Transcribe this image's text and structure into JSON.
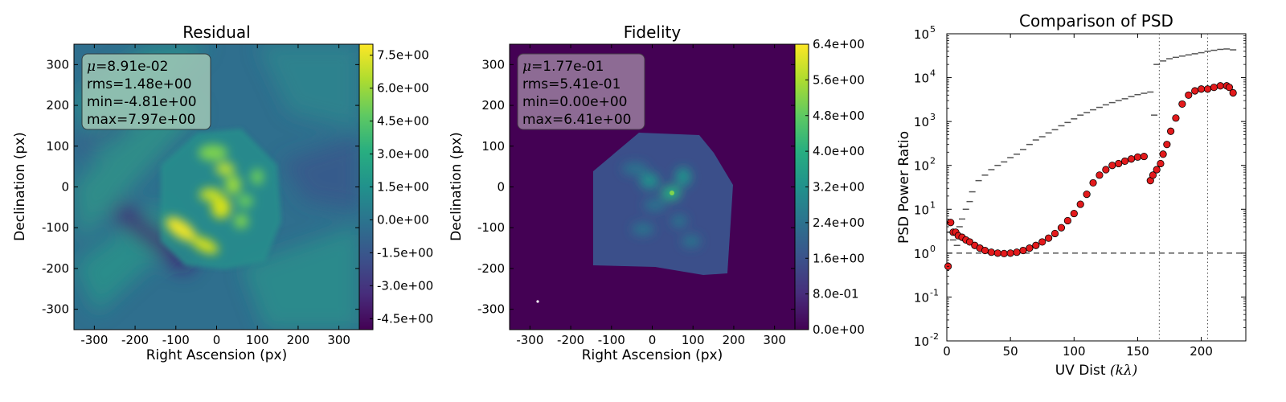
{
  "chart_data": [
    {
      "type": "heatmap",
      "title": "Residual",
      "xlabel": "Right Ascension (px)",
      "ylabel": "Declination (px)",
      "xlim": [
        -350,
        350
      ],
      "ylim": [
        -350,
        350
      ],
      "xticks": [
        -300,
        -200,
        -100,
        0,
        100,
        200,
        300
      ],
      "yticks": [
        -300,
        -200,
        -100,
        0,
        100,
        200,
        300
      ],
      "colormap": "viridis",
      "colorbar": {
        "range": [
          -5.0,
          8.0
        ],
        "ticks": [
          -4.5,
          -3.0,
          -1.5,
          0.0,
          1.5,
          3.0,
          4.5,
          6.0,
          7.5
        ],
        "tick_labels": [
          "-4.5e+00",
          "-3.0e+00",
          "-1.5e+00",
          "0.0e+00",
          "1.5e+00",
          "3.0e+00",
          "4.5e+00",
          "6.0e+00",
          "7.5e+00"
        ]
      },
      "stats_box": {
        "mu": "=8.91e-02",
        "rms": "rms=1.48e+00",
        "min": "min=-4.81e+00",
        "max": "max=7.97e+00"
      },
      "box_color": "#9fc7b5"
    },
    {
      "type": "heatmap",
      "title": "Fidelity",
      "xlabel": "Right Ascension (px)",
      "ylabel": "Declination (px)",
      "xlim": [
        -350,
        350
      ],
      "ylim": [
        -350,
        350
      ],
      "xticks": [
        -300,
        -200,
        -100,
        0,
        100,
        200,
        300
      ],
      "yticks": [
        -300,
        -200,
        -100,
        0,
        100,
        200,
        300
      ],
      "colormap": "viridis",
      "colorbar": {
        "range": [
          0.0,
          6.4
        ],
        "ticks": [
          0.0,
          0.8,
          1.6,
          2.4,
          3.2,
          4.0,
          4.8,
          5.6,
          6.4
        ],
        "tick_labels": [
          "0.0e+00",
          "8.0e-01",
          "1.6e+00",
          "2.4e+00",
          "3.2e+00",
          "4.0e+00",
          "4.8e+00",
          "5.6e+00",
          "6.4e+00"
        ]
      },
      "stats_box": {
        "mu": "=1.77e-01",
        "rms": "rms=5.41e-01",
        "min": "min=0.00e+00",
        "max": "max=6.41e+00"
      },
      "box_color": "#9a7ea0"
    },
    {
      "type": "scatter",
      "title": "Comparison of PSD",
      "xlabel": "UV Dist",
      "xlabel_math": "(kλ)",
      "ylabel": "PSD Power Ratio",
      "xlim": [
        0,
        235
      ],
      "ylim": [
        0.01,
        100000
      ],
      "yscale": "log",
      "xticks": [
        0,
        50,
        100,
        150,
        200
      ],
      "ytick_exponents": [
        -2,
        -1,
        0,
        1,
        2,
        3,
        4,
        5
      ],
      "hlines": [
        1
      ],
      "vlines": [
        167,
        205
      ],
      "series": [
        {
          "marker": "tick",
          "color": "#555555",
          "x": [
            2,
            5,
            8,
            10,
            12,
            15,
            18,
            20,
            25,
            30,
            35,
            40,
            45,
            50,
            55,
            60,
            65,
            70,
            75,
            80,
            85,
            90,
            95,
            100,
            105,
            110,
            115,
            120,
            125,
            130,
            135,
            140,
            145,
            150,
            155,
            160,
            163,
            165,
            170,
            175,
            180,
            185,
            190,
            195,
            200,
            205,
            210,
            215,
            220,
            225
          ],
          "y": [
            3,
            2,
            1.5,
            4,
            6,
            10,
            15,
            25,
            45,
            60,
            80,
            100,
            120,
            150,
            180,
            230,
            300,
            380,
            450,
            550,
            650,
            800,
            950,
            1150,
            1400,
            1600,
            1850,
            2100,
            2400,
            2700,
            3000,
            3300,
            3700,
            4100,
            4400,
            4700,
            1400,
            20000,
            24000,
            27000,
            29000,
            31000,
            33000,
            35000,
            37000,
            40000,
            42000,
            44000,
            45000,
            43000
          ]
        },
        {
          "marker": "circle",
          "color": "#e31a1c",
          "x": [
            1,
            3,
            5,
            7,
            9,
            12,
            15,
            18,
            22,
            26,
            30,
            35,
            40,
            45,
            50,
            55,
            60,
            65,
            70,
            75,
            80,
            85,
            90,
            95,
            100,
            105,
            110,
            115,
            120,
            125,
            130,
            135,
            140,
            145,
            150,
            155,
            160,
            162,
            165,
            168,
            170,
            173,
            176,
            180,
            185,
            190,
            195,
            200,
            205,
            210,
            215,
            220,
            222,
            225
          ],
          "y": [
            0.5,
            5,
            3,
            3,
            2.5,
            2.3,
            2,
            1.8,
            1.5,
            1.3,
            1.15,
            1.05,
            1.0,
            0.98,
            1.0,
            1.05,
            1.15,
            1.3,
            1.5,
            1.8,
            2.2,
            2.8,
            3.8,
            5.5,
            8,
            13,
            22,
            40,
            60,
            80,
            100,
            110,
            125,
            140,
            155,
            160,
            45,
            60,
            80,
            110,
            180,
            300,
            600,
            1200,
            2500,
            4000,
            5000,
            5500,
            5500,
            6000,
            6500,
            6500,
            6000,
            4500
          ]
        }
      ]
    }
  ]
}
